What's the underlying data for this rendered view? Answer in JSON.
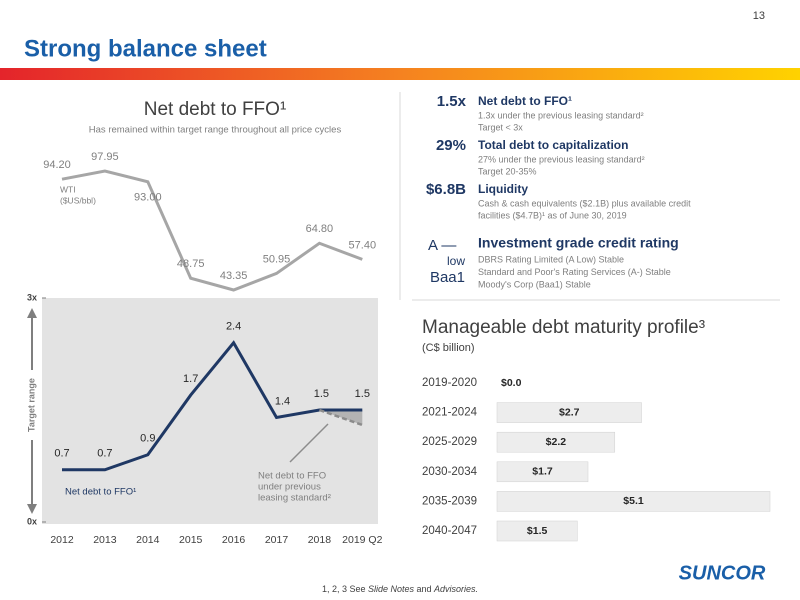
{
  "page_number": "13",
  "title": "Strong balance sheet",
  "chart_data": [
    {
      "type": "line",
      "title": "Net debt to FFO¹",
      "subtitle": "Has remained within target range throughout all price cycles",
      "categories": [
        "2012",
        "2013",
        "2014",
        "2015",
        "2016",
        "2017",
        "2018",
        "2019 Q2"
      ],
      "ylim": [
        0,
        3
      ],
      "yticks": [
        {
          "value": 0,
          "label": "0x"
        },
        {
          "value": 3,
          "label": "3x"
        }
      ],
      "y_label": "Target range",
      "annotation": [
        "Net debt to FFO",
        "under previous",
        "leasing standard²"
      ],
      "series": [
        {
          "name": "Net debt to FFO¹",
          "color": "#1f3864",
          "values": [
            0.7,
            0.7,
            0.9,
            1.7,
            2.4,
            1.4,
            1.5,
            1.5
          ]
        },
        {
          "name": "Net debt to FFO under previous leasing standard²",
          "color": "#8c8c8c",
          "values": [
            null,
            null,
            null,
            null,
            null,
            null,
            1.5,
            1.3
          ]
        },
        {
          "name": "WTI",
          "unit": "($US/bbl)",
          "color": "#a6a6a6",
          "axis": "y2",
          "values": [
            94.2,
            97.95,
            93.0,
            48.75,
            43.35,
            50.95,
            64.8,
            57.4
          ],
          "value_labels": [
            "94.20",
            "97.95",
            "93.00",
            "48.75",
            "43.35",
            "50.95",
            "64.80",
            "57.40"
          ]
        }
      ]
    },
    {
      "type": "hbar",
      "title": "Manageable debt maturity profile³",
      "subtitle": "(C$ billion)",
      "categories": [
        "2019-2020",
        "2021-2024",
        "2025-2029",
        "2030-2034",
        "2035-2039",
        "2040-2047"
      ],
      "values": [
        0.0,
        2.7,
        2.2,
        1.7,
        5.1,
        1.5
      ],
      "value_labels": [
        "$0.0",
        "$2.7",
        "$2.2",
        "$1.7",
        "$5.1",
        "$1.5"
      ],
      "color": "#ededed"
    }
  ],
  "metrics": [
    {
      "value": "1.5x",
      "heading": "Net debt to FFO¹",
      "lines": [
        "1.3x under the previous leasing standard²",
        "Target < 3x"
      ]
    },
    {
      "value": "29%",
      "heading": "Total debt to capitalization",
      "lines": [
        "27% under the previous leasing standard²",
        "Target 20-35%"
      ]
    },
    {
      "value": "$6.8B",
      "heading": "Liquidity",
      "lines": [
        "Cash & cash equivalents ($2.1B) plus available credit",
        "facilities ($4.7B)¹ as of June 30, 2019"
      ]
    }
  ],
  "rating": {
    "left": [
      "A —",
      "low",
      "Baa1"
    ],
    "heading": "Investment grade credit rating",
    "lines": [
      "DBRS Rating Limited (A Low) Stable",
      "Standard and Poor's Rating Services (A-) Stable",
      "Moody's Corp (Baa1) Stable"
    ]
  },
  "footer": {
    "prefix": "1, 2, 3  See ",
    "italic1": "Slide Notes",
    "mid": " and ",
    "italic2": "Advisories."
  },
  "logo": "SUNCOR"
}
